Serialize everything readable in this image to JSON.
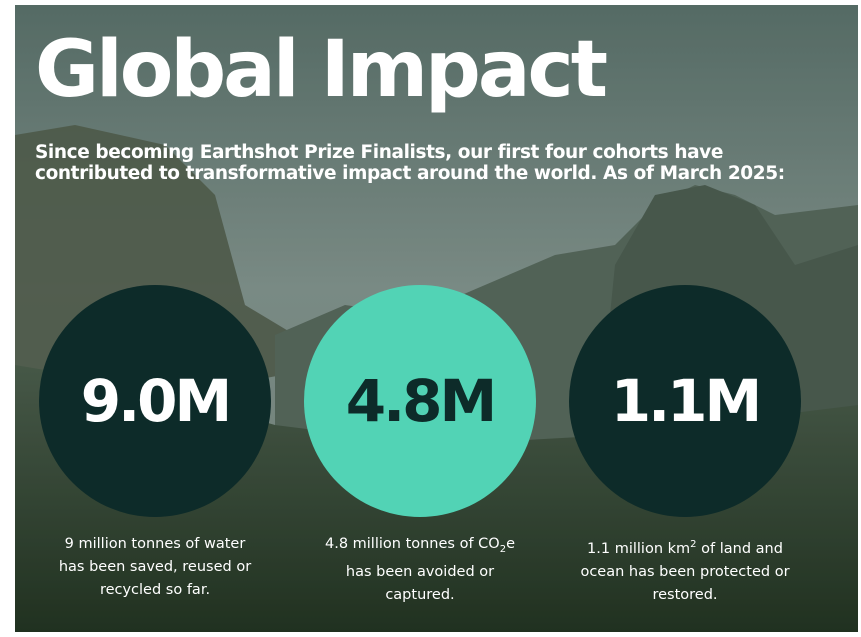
{
  "header": {
    "title": "Global Impact",
    "subtitle": "Since becoming Earthshot Prize Finalists, our first four cohorts have contributed to transformative impact around the world. As of March 2025:"
  },
  "stats": [
    {
      "value": "9.0M",
      "color": "#0d2b29",
      "text_color": "#ffffff",
      "description": [
        {
          "text": "9 million tonnes of water has been saved, reused or recycled so far."
        }
      ]
    },
    {
      "value": "4.8M",
      "color": "#52d3b5",
      "text_color": "#0d2b29",
      "description": [
        {
          "text": "4.8 million tonnes of CO"
        },
        {
          "text": "2",
          "style": "sub"
        },
        {
          "text": "e has been avoided or captured."
        }
      ]
    },
    {
      "value": "1.1M",
      "color": "#0d2b29",
      "text_color": "#ffffff",
      "description": [
        {
          "text": "1.1 million km"
        },
        {
          "text": "2",
          "style": "sup"
        },
        {
          "text": " of land and ocean has been protected or restored."
        }
      ]
    }
  ]
}
